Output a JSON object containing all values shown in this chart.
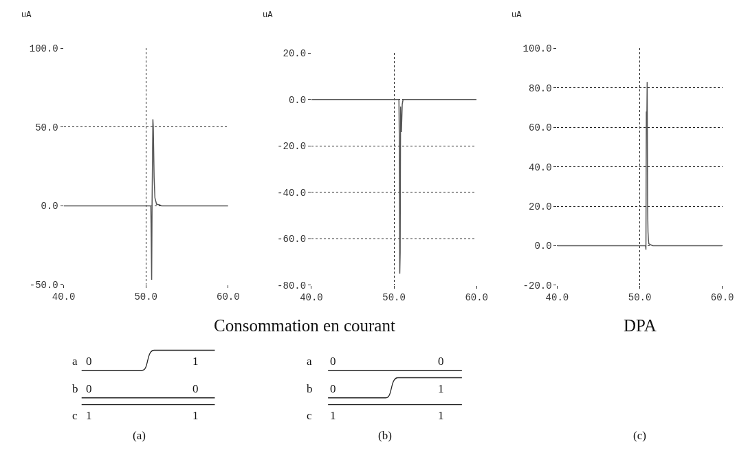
{
  "chart_data": [
    {
      "type": "line",
      "ylabel": "uA",
      "xlabel": "Consommation en courant",
      "series": [
        {
          "color": "#555555",
          "x": [
            40,
            50.6,
            50.65,
            50.7,
            50.75,
            50.85,
            50.9,
            51.0,
            51.1,
            51.3,
            51.7,
            51.9,
            60
          ],
          "values": [
            0,
            0,
            -20,
            -47,
            0,
            55,
            50,
            18,
            5,
            1,
            0.5,
            0,
            0
          ]
        }
      ],
      "xlim": [
        40,
        60
      ],
      "xticks": [
        {
          "value": 40,
          "label": "40.0"
        },
        {
          "value": 50,
          "label": "50.0"
        },
        {
          "value": 60,
          "label": "60.0"
        }
      ],
      "ylim": [
        -50,
        100
      ],
      "yticks": [
        {
          "value": -50,
          "label": "-50.0"
        },
        {
          "value": 0,
          "label": "0.0"
        },
        {
          "value": 50,
          "label": "50.0"
        },
        {
          "value": 100,
          "label": "100.0"
        }
      ],
      "grid": true,
      "line_style": "solid",
      "marker": "none",
      "annotations": [
        "a",
        "0",
        "1",
        "b",
        "0",
        "0",
        "c",
        "1",
        "1",
        "(a)"
      ]
    },
    {
      "type": "line",
      "ylabel": "uA",
      "series": [
        {
          "color": "#555555",
          "x": [
            40,
            50.6,
            50.65,
            50.7,
            50.75,
            50.8,
            50.9,
            51.0,
            51.1,
            60
          ],
          "values": [
            0,
            0,
            -19,
            -75,
            -66,
            -3,
            -14,
            -2,
            0,
            0
          ]
        }
      ],
      "xlim": [
        40,
        60
      ],
      "xticks": [
        {
          "value": 40,
          "label": "40.0"
        },
        {
          "value": 50,
          "label": "50.0"
        },
        {
          "value": 60,
          "label": "60.0"
        }
      ],
      "ylim": [
        -80,
        20
      ],
      "yticks": [
        {
          "value": -80,
          "label": "-80.0"
        },
        {
          "value": -60,
          "label": "-60.0"
        },
        {
          "value": -40,
          "label": "-40.0"
        },
        {
          "value": -20,
          "label": "-20.0"
        },
        {
          "value": 0,
          "label": "0.0"
        },
        {
          "value": 20,
          "label": "20.0"
        }
      ],
      "grid": true,
      "line_style": "solid",
      "marker": "none",
      "annotations": [
        "a",
        "0",
        "0",
        "b",
        "0",
        "1",
        "c",
        "1",
        "1",
        "(b)"
      ]
    },
    {
      "type": "line",
      "ylabel": "uA",
      "xlabel": "DPA",
      "series": [
        {
          "color": "#555555",
          "x": [
            40,
            50.7,
            50.75,
            50.8,
            50.85,
            50.9,
            50.95,
            51.0,
            51.05,
            51.1,
            51.3,
            51.6,
            60
          ],
          "values": [
            0,
            0,
            -2,
            68,
            60,
            83,
            20,
            7,
            3,
            1,
            0.5,
            0,
            0
          ]
        }
      ],
      "xlim": [
        40,
        60
      ],
      "xticks": [
        {
          "value": 40,
          "label": "40.0"
        },
        {
          "value": 50,
          "label": "50.0"
        },
        {
          "value": 60,
          "label": "60.0"
        }
      ],
      "ylim": [
        -20,
        100
      ],
      "yticks": [
        {
          "value": -20,
          "label": "-20.0"
        },
        {
          "value": 0,
          "label": "0.0"
        },
        {
          "value": 20,
          "label": "20.0"
        },
        {
          "value": 40,
          "label": "40.0"
        },
        {
          "value": 60,
          "label": "60.0"
        },
        {
          "value": 80,
          "label": "80.0"
        },
        {
          "value": 100,
          "label": "100.0"
        }
      ],
      "grid": true,
      "line_style": "solid",
      "marker": "none",
      "annotations": [
        "(c)"
      ]
    }
  ]
}
